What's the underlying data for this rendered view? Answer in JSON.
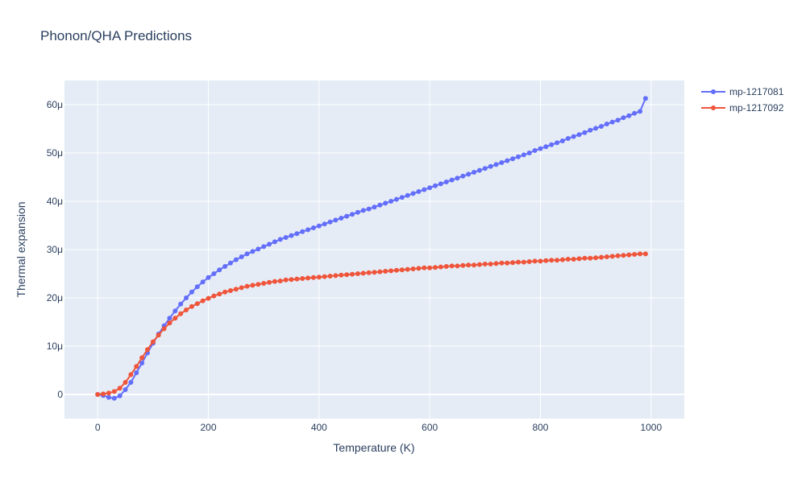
{
  "chart_data": {
    "type": "line",
    "title": "Phonon/QHA Predictions",
    "xlabel": "Temperature (K)",
    "ylabel": "Thermal expansion",
    "xlim": [
      -60,
      1060
    ],
    "ylim": [
      -5e-06,
      6.5e-05
    ],
    "x_ticks": [
      0,
      200,
      400,
      600,
      800,
      1000
    ],
    "x_tick_labels": [
      "0",
      "200",
      "400",
      "600",
      "800",
      "1000"
    ],
    "y_ticks": [
      0,
      1e-05,
      2e-05,
      3e-05,
      4e-05,
      5e-05,
      6e-05
    ],
    "y_tick_labels": [
      "0",
      "10μ",
      "20μ",
      "30μ",
      "40μ",
      "50μ",
      "60μ"
    ],
    "grid": true,
    "legend_position": "top-right",
    "background_color": "#e5ecf6",
    "series": [
      {
        "name": "mp-1217081",
        "color": "#636efa",
        "x": [
          0,
          10,
          20,
          30,
          40,
          50,
          60,
          70,
          80,
          90,
          100,
          110,
          120,
          130,
          140,
          150,
          160,
          170,
          180,
          190,
          200,
          210,
          220,
          230,
          240,
          250,
          260,
          270,
          280,
          290,
          300,
          310,
          320,
          330,
          340,
          350,
          360,
          370,
          380,
          390,
          400,
          410,
          420,
          430,
          440,
          450,
          460,
          470,
          480,
          490,
          500,
          510,
          520,
          530,
          540,
          550,
          560,
          570,
          580,
          590,
          600,
          610,
          620,
          630,
          640,
          650,
          660,
          670,
          680,
          690,
          700,
          710,
          720,
          730,
          740,
          750,
          760,
          770,
          780,
          790,
          800,
          810,
          820,
          830,
          840,
          850,
          860,
          870,
          880,
          890,
          900,
          910,
          920,
          930,
          940,
          950,
          960,
          970,
          980,
          990
        ],
        "y": [
          0,
          -2e-07,
          -6e-07,
          -8e-07,
          -3e-07,
          1e-06,
          2.5e-06,
          4.5e-06,
          6.5e-06,
          8.6e-06,
          1.06e-05,
          1.25e-05,
          1.42e-05,
          1.58e-05,
          1.73e-05,
          1.87e-05,
          2e-05,
          2.12e-05,
          2.23e-05,
          2.33e-05,
          2.42e-05,
          2.5e-05,
          2.58e-05,
          2.65e-05,
          2.72e-05,
          2.79e-05,
          2.85e-05,
          2.91e-05,
          2.96e-05,
          3.01e-05,
          3.06e-05,
          3.11e-05,
          3.16e-05,
          3.21e-05,
          3.25e-05,
          3.29e-05,
          3.33e-05,
          3.37e-05,
          3.41e-05,
          3.45e-05,
          3.49e-05,
          3.53e-05,
          3.57e-05,
          3.61e-05,
          3.65e-05,
          3.69e-05,
          3.73e-05,
          3.77e-05,
          3.81e-05,
          3.84e-05,
          3.88e-05,
          3.92e-05,
          3.96e-05,
          4e-05,
          4.04e-05,
          4.08e-05,
          4.12e-05,
          4.16e-05,
          4.2e-05,
          4.24e-05,
          4.28e-05,
          4.32e-05,
          4.36e-05,
          4.4e-05,
          4.44e-05,
          4.48e-05,
          4.52e-05,
          4.56e-05,
          4.6e-05,
          4.64e-05,
          4.68e-05,
          4.72e-05,
          4.76e-05,
          4.8e-05,
          4.84e-05,
          4.88e-05,
          4.92e-05,
          4.96e-05,
          5e-05,
          5.05e-05,
          5.09e-05,
          5.13e-05,
          5.17e-05,
          5.21e-05,
          5.25e-05,
          5.3e-05,
          5.34e-05,
          5.38e-05,
          5.42e-05,
          5.47e-05,
          5.51e-05,
          5.55e-05,
          5.6e-05,
          5.64e-05,
          5.68e-05,
          5.73e-05,
          5.77e-05,
          5.82e-05,
          5.86e-05,
          6.13e-05
        ]
      },
      {
        "name": "mp-1217092",
        "color": "#ef553b",
        "x": [
          0,
          10,
          20,
          30,
          40,
          50,
          60,
          70,
          80,
          90,
          100,
          110,
          120,
          130,
          140,
          150,
          160,
          170,
          180,
          190,
          200,
          210,
          220,
          230,
          240,
          250,
          260,
          270,
          280,
          290,
          300,
          310,
          320,
          330,
          340,
          350,
          360,
          370,
          380,
          390,
          400,
          410,
          420,
          430,
          440,
          450,
          460,
          470,
          480,
          490,
          500,
          510,
          520,
          530,
          540,
          550,
          560,
          570,
          580,
          590,
          600,
          610,
          620,
          630,
          640,
          650,
          660,
          670,
          680,
          690,
          700,
          710,
          720,
          730,
          740,
          750,
          760,
          770,
          780,
          790,
          800,
          810,
          820,
          830,
          840,
          850,
          860,
          870,
          880,
          890,
          900,
          910,
          920,
          930,
          940,
          950,
          960,
          970,
          980,
          990
        ],
        "y": [
          0,
          1e-07,
          3e-07,
          6e-07,
          1.3e-06,
          2.5e-06,
          4.1e-06,
          5.8e-06,
          7.6e-06,
          9.3e-06,
          1.09e-05,
          1.23e-05,
          1.36e-05,
          1.48e-05,
          1.58e-05,
          1.67e-05,
          1.75e-05,
          1.82e-05,
          1.88e-05,
          1.94e-05,
          1.99e-05,
          2.04e-05,
          2.08e-05,
          2.12e-05,
          2.15e-05,
          2.18e-05,
          2.21e-05,
          2.24e-05,
          2.26e-05,
          2.28e-05,
          2.3e-05,
          2.32e-05,
          2.34e-05,
          2.35e-05,
          2.37e-05,
          2.38e-05,
          2.39e-05,
          2.4e-05,
          2.41e-05,
          2.42e-05,
          2.43e-05,
          2.44e-05,
          2.45e-05,
          2.46e-05,
          2.47e-05,
          2.48e-05,
          2.49e-05,
          2.5e-05,
          2.51e-05,
          2.52e-05,
          2.53e-05,
          2.54e-05,
          2.55e-05,
          2.56e-05,
          2.57e-05,
          2.58e-05,
          2.59e-05,
          2.6e-05,
          2.61e-05,
          2.62e-05,
          2.62e-05,
          2.63e-05,
          2.64e-05,
          2.65e-05,
          2.66e-05,
          2.66e-05,
          2.67e-05,
          2.68e-05,
          2.68e-05,
          2.69e-05,
          2.7e-05,
          2.7e-05,
          2.71e-05,
          2.72e-05,
          2.72e-05,
          2.73e-05,
          2.74e-05,
          2.74e-05,
          2.75e-05,
          2.76e-05,
          2.76e-05,
          2.77e-05,
          2.78e-05,
          2.78e-05,
          2.79e-05,
          2.8e-05,
          2.8e-05,
          2.81e-05,
          2.82e-05,
          2.82e-05,
          2.83e-05,
          2.84e-05,
          2.85e-05,
          2.86e-05,
          2.87e-05,
          2.88e-05,
          2.89e-05,
          2.9e-05,
          2.91e-05,
          2.91e-05
        ]
      }
    ]
  }
}
